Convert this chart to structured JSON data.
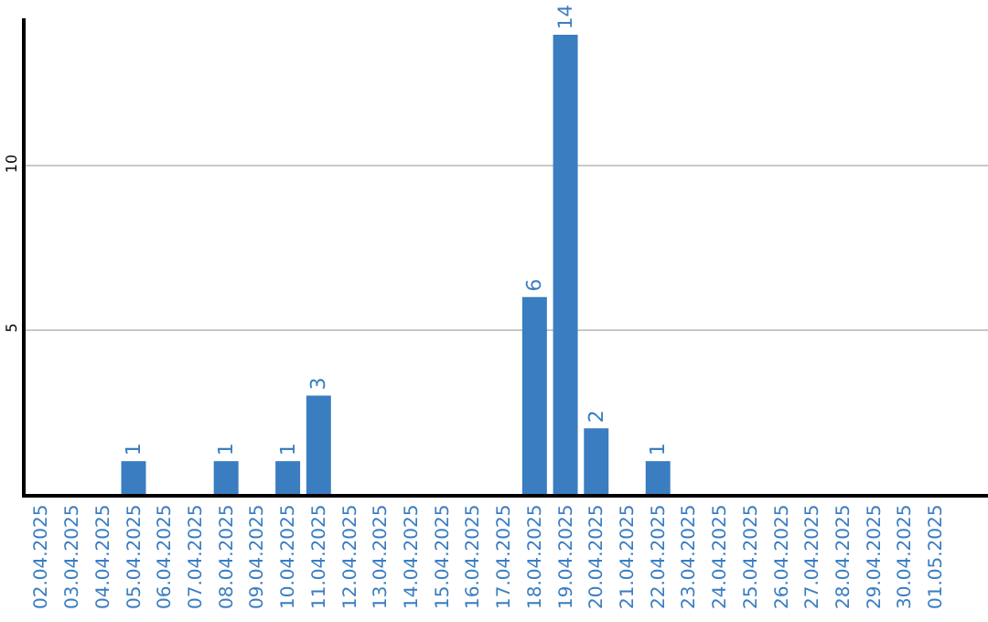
{
  "chart_data": {
    "type": "bar",
    "categories": [
      "02.04.2025",
      "03.04.2025",
      "04.04.2025",
      "05.04.2025",
      "06.04.2025",
      "07.04.2025",
      "08.04.2025",
      "09.04.2025",
      "10.04.2025",
      "11.04.2025",
      "12.04.2025",
      "13.04.2025",
      "14.04.2025",
      "15.04.2025",
      "16.04.2025",
      "17.04.2025",
      "18.04.2025",
      "19.04.2025",
      "20.04.2025",
      "21.04.2025",
      "22.04.2025",
      "23.04.2025",
      "24.04.2025",
      "25.04.2025",
      "26.04.2025",
      "27.04.2025",
      "28.04.2025",
      "29.04.2025",
      "30.04.2025",
      "01.05.2025"
    ],
    "values": [
      0,
      0,
      0,
      1,
      0,
      0,
      1,
      0,
      1,
      3,
      0,
      0,
      0,
      0,
      0,
      0,
      6,
      14,
      2,
      0,
      1,
      0,
      0,
      0,
      0,
      0,
      0,
      0,
      0,
      0
    ],
    "value_labels": [
      null,
      null,
      null,
      "1",
      null,
      null,
      "1",
      null,
      "1",
      "3",
      null,
      null,
      null,
      null,
      null,
      null,
      "6",
      "14",
      "2",
      null,
      "1",
      null,
      null,
      null,
      null,
      null,
      null,
      null,
      null,
      null
    ],
    "color": "#3a7dc1",
    "ylim": [
      0,
      14.5
    ],
    "yticks": [
      5,
      10
    ],
    "grid": "y",
    "legend": false
  }
}
